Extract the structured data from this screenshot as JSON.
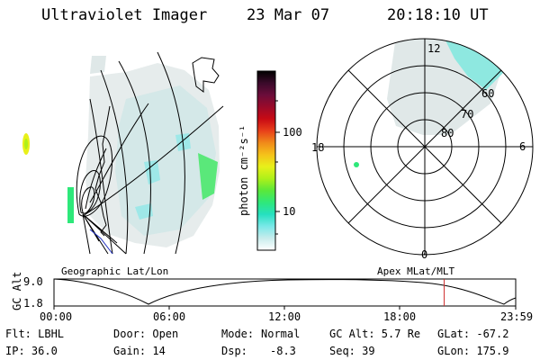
{
  "header": {
    "instrument": "Ultraviolet Imager",
    "date": "23 Mar 07",
    "time": "20:18:10 UT"
  },
  "left_panel": {
    "caption": "Geographic Lat/Lon"
  },
  "colorbar": {
    "unit_label": "photon cm⁻²s⁻¹",
    "ticks": [
      "100",
      "10"
    ],
    "colors": [
      "#000000",
      "#3a0a2a",
      "#6b0d3a",
      "#9a0a2a",
      "#c80a14",
      "#e8401a",
      "#f08a1a",
      "#f5c21a",
      "#e8f01a",
      "#aef01a",
      "#5ae83a",
      "#2ee87a",
      "#26e0c0",
      "#7ae8e8",
      "#c8ecec",
      "#ffffff"
    ]
  },
  "polar_panel": {
    "caption": "Apex MLat/MLT",
    "mlt_labels": {
      "top": "12",
      "right": "6",
      "bottom": "0",
      "left": "18"
    },
    "lat_labels": [
      "60",
      "70",
      "80"
    ]
  },
  "altitude_plot": {
    "ylabel": "GC Alt",
    "ymax_label": "9.0",
    "ymin_label": "1.8",
    "x_ticks": [
      "00:00",
      "06:00",
      "12:00",
      "18:00",
      "23:59"
    ],
    "current_time_fraction": 0.845,
    "line_color": "#d03030"
  },
  "info": {
    "filter": "Flt: LBHL",
    "door": "Door: Open",
    "mode_label": "Mode:",
    "mode_value": "Normal",
    "gc_alt": "GC Alt: 5.7 Re",
    "glat": "GLat: -67.2",
    "ip": "IP: 36.0",
    "gain": "Gain: 14",
    "dsp_label": "Dsp:",
    "dsp_value": "-8.3",
    "seq": "Seq: 39",
    "glon": "GLon: 175.9"
  }
}
